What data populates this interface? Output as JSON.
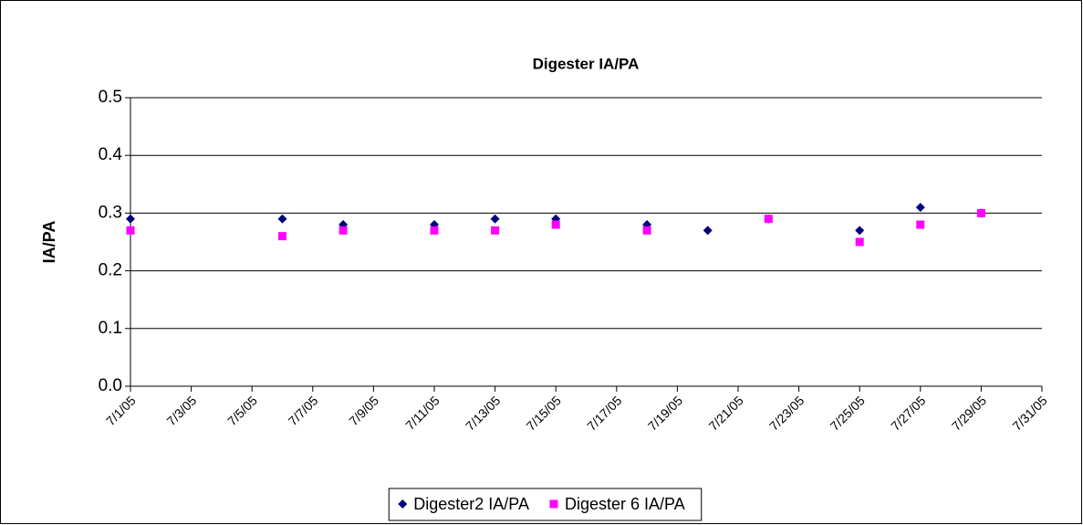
{
  "chart_data": {
    "type": "scatter",
    "title": "Digester IA/PA",
    "ylabel": "IA/PA",
    "x": [
      "7/1/05",
      "7/6/05",
      "7/8/05",
      "7/11/05",
      "7/13/05",
      "7/15/05",
      "7/18/05",
      "7/20/05",
      "7/22/05",
      "7/25/05",
      "7/27/05",
      "7/29/05"
    ],
    "series": [
      {
        "name": "Digester2 IA/PA",
        "color": "#000080",
        "marker": "diamond",
        "values": [
          0.29,
          0.29,
          0.28,
          0.28,
          0.29,
          0.29,
          0.28,
          0.27,
          0.29,
          0.27,
          0.31,
          0.3
        ]
      },
      {
        "name": "Digester 6 IA/PA",
        "color": "#ff00ff",
        "marker": "square",
        "values": [
          0.27,
          0.26,
          0.27,
          0.27,
          0.27,
          0.28,
          0.27,
          null,
          0.29,
          0.25,
          0.28,
          0.3
        ]
      }
    ],
    "xlim": [
      "7/1/05",
      "7/31/05"
    ],
    "xticks": [
      "7/1/05",
      "7/3/05",
      "7/5/05",
      "7/7/05",
      "7/9/05",
      "7/11/05",
      "7/13/05",
      "7/15/05",
      "7/17/05",
      "7/19/05",
      "7/21/05",
      "7/23/05",
      "7/25/05",
      "7/27/05",
      "7/29/05",
      "7/31/05"
    ],
    "ylim": [
      0,
      0.5
    ],
    "yticks": [
      {
        "value": 0,
        "label": "0.0"
      },
      0.1,
      0.2,
      0.3,
      0.4,
      0.5
    ],
    "grid": true,
    "legend": "bottom"
  }
}
